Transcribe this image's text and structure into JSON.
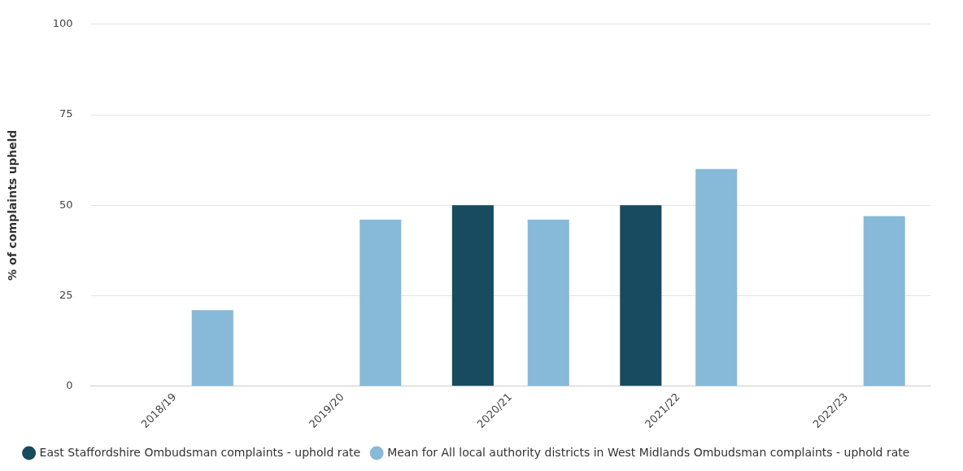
{
  "chart_data": {
    "type": "bar",
    "ylabel": "% of complaints upheld",
    "categories": [
      "2018/19",
      "2019/20",
      "2020/21",
      "2021/22",
      "2022/23"
    ],
    "series": [
      {
        "name": "East Staffordshire Ombudsman complaints - uphold rate",
        "color": "#184a60",
        "values": [
          null,
          null,
          50,
          50,
          null
        ]
      },
      {
        "name": "Mean for All local authority districts in West Midlands Ombudsman complaints - uphold rate",
        "color": "#86bad8",
        "values": [
          21,
          46,
          46,
          60,
          47
        ]
      }
    ],
    "ylim": [
      0,
      100
    ],
    "yticks": [
      0,
      25,
      50,
      75,
      100
    ],
    "grid": "y",
    "legend": "bottom"
  }
}
